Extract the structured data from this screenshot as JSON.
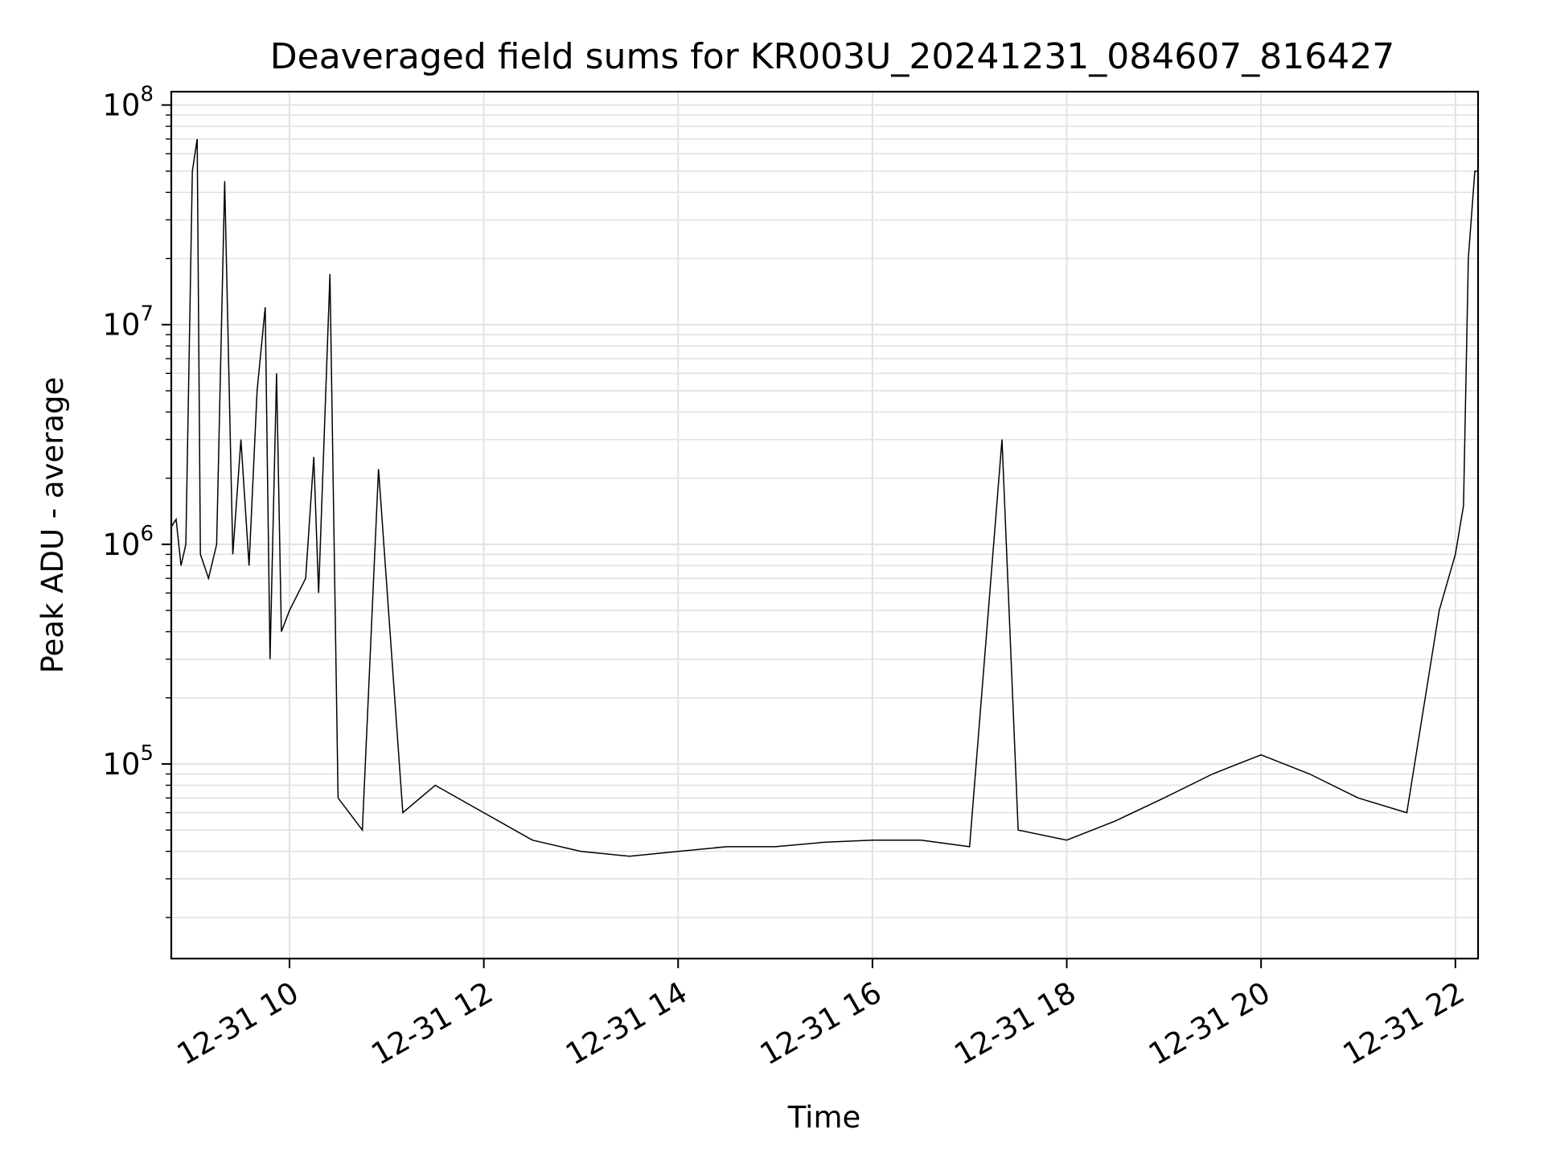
{
  "chart_data": {
    "type": "line",
    "title": "Deaveraged field sums for KR003U_20241231_084607_816427",
    "xlabel": "Time",
    "ylabel": "Peak ADU - average",
    "x_start": "12-31 08:47",
    "x_end": "12-31 22:14",
    "xlim": [
      "12-31 08:47",
      "12-31 22:14"
    ],
    "ylim": [
      13000,
      115000000
    ],
    "yscale": "log",
    "grid": true,
    "line_color": "#000000",
    "grid_color": "#e2e2e2",
    "x_ticks": [
      "12-31 10",
      "12-31 12",
      "12-31 14",
      "12-31 16",
      "12-31 18",
      "12-31 20",
      "12-31 22"
    ],
    "y_ticks": [
      {
        "base": "10",
        "exp": "5",
        "value": 100000
      },
      {
        "base": "10",
        "exp": "6",
        "value": 1000000
      },
      {
        "base": "10",
        "exp": "7",
        "value": 10000000
      },
      {
        "base": "10",
        "exp": "8",
        "value": 100000000
      }
    ],
    "series": [
      {
        "points": [
          [
            "12-31 08:47",
            1200000
          ],
          [
            "12-31 08:50",
            1300000
          ],
          [
            "12-31 08:53",
            800000
          ],
          [
            "12-31 08:56",
            1000000
          ],
          [
            "12-31 09:00",
            50000000
          ],
          [
            "12-31 09:03",
            70000000
          ],
          [
            "12-31 09:05",
            900000
          ],
          [
            "12-31 09:10",
            700000
          ],
          [
            "12-31 09:15",
            1000000
          ],
          [
            "12-31 09:20",
            45000000
          ],
          [
            "12-31 09:25",
            900000
          ],
          [
            "12-31 09:30",
            3000000
          ],
          [
            "12-31 09:35",
            800000
          ],
          [
            "12-31 09:40",
            5000000
          ],
          [
            "12-31 09:45",
            12000000
          ],
          [
            "12-31 09:48",
            300000
          ],
          [
            "12-31 09:52",
            6000000
          ],
          [
            "12-31 09:55",
            400000
          ],
          [
            "12-31 10:00",
            500000
          ],
          [
            "12-31 10:10",
            700000
          ],
          [
            "12-31 10:15",
            2500000
          ],
          [
            "12-31 10:18",
            600000
          ],
          [
            "12-31 10:25",
            17000000
          ],
          [
            "12-31 10:30",
            70000
          ],
          [
            "12-31 10:45",
            50000
          ],
          [
            "12-31 10:55",
            2200000
          ],
          [
            "12-31 11:10",
            60000
          ],
          [
            "12-31 11:30",
            80000
          ],
          [
            "12-31 12:00",
            60000
          ],
          [
            "12-31 12:30",
            45000
          ],
          [
            "12-31 13:00",
            40000
          ],
          [
            "12-31 13:30",
            38000
          ],
          [
            "12-31 14:00",
            40000
          ],
          [
            "12-31 14:30",
            42000
          ],
          [
            "12-31 15:00",
            42000
          ],
          [
            "12-31 15:30",
            44000
          ],
          [
            "12-31 16:00",
            45000
          ],
          [
            "12-31 16:30",
            45000
          ],
          [
            "12-31 17:00",
            42000
          ],
          [
            "12-31 17:20",
            3000000
          ],
          [
            "12-31 17:30",
            50000
          ],
          [
            "12-31 18:00",
            45000
          ],
          [
            "12-31 18:30",
            55000
          ],
          [
            "12-31 19:00",
            70000
          ],
          [
            "12-31 19:30",
            90000
          ],
          [
            "12-31 20:00",
            110000
          ],
          [
            "12-31 20:30",
            90000
          ],
          [
            "12-31 21:00",
            70000
          ],
          [
            "12-31 21:30",
            60000
          ],
          [
            "12-31 21:50",
            500000
          ],
          [
            "12-31 22:00",
            900000
          ],
          [
            "12-31 22:05",
            1500000
          ],
          [
            "12-31 22:08",
            20000000
          ],
          [
            "12-31 22:12",
            50000000
          ],
          [
            "12-31 22:14",
            50000000
          ]
        ]
      }
    ]
  }
}
